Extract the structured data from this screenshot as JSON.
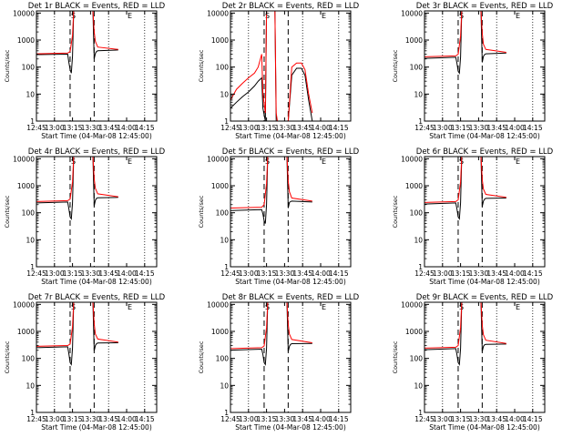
{
  "chart_data": {
    "type": "line",
    "xlabel": "Start Time (04-Mar-08 12:45:00)",
    "ylabel": "Counts/sec",
    "yscale": "log",
    "ylim": [
      1,
      12000
    ],
    "xlim": [
      "12:45",
      "14:25"
    ],
    "x_ticks": [
      "12:45",
      "13:00",
      "13:15",
      "13:30",
      "13:45",
      "14:00",
      "14:15"
    ],
    "y_ticks": [
      "1",
      "10",
      "100",
      "1000",
      "10000"
    ],
    "colors": {
      "events": "#000000",
      "lld": "#ff0000"
    },
    "vertical_markers": {
      "dotted": [
        "13:00",
        "13:45",
        "14:15"
      ],
      "dashed": [
        "13:13",
        "13:33"
      ],
      "labels": [
        {
          "text": "S",
          "x": "13:13"
        },
        {
          "text": "E",
          "x": "14:00"
        }
      ]
    },
    "panels": [
      {
        "title": "Det 1r BLACK = Events, RED = LLD",
        "series": [
          {
            "color": "black",
            "x": [
              "12:45",
              "13:11",
              "13:12",
              "13:13",
              "13:14",
              "13:15",
              "13:16",
              "13:32",
              "13:33",
              "13:34",
              "13:35",
              "13:36",
              "13:53"
            ],
            "values": [
              290,
              300,
              150,
              80,
              60,
              250,
              12000,
              12000,
              200,
              320,
              380,
              400,
              430
            ]
          },
          {
            "color": "red",
            "x": [
              "12:45",
              "13:11",
              "13:13",
              "13:15",
              "13:16",
              "13:32",
              "13:33",
              "13:34",
              "13:36",
              "13:53"
            ],
            "values": [
              310,
              330,
              380,
              1500,
              12000,
              12000,
              2000,
              900,
              550,
              450
            ]
          }
        ]
      },
      {
        "title": "Det 2r BLACK = Events, RED = LLD",
        "series": [
          {
            "color": "black",
            "x": [
              "12:45",
              "12:50",
              "12:55",
              "13:00",
              "13:05",
              "13:08",
              "13:11",
              "13:12",
              "13:14",
              "13:15",
              "13:22",
              "13:23",
              "13:24",
              "13:32",
              "13:33",
              "13:36",
              "13:40",
              "13:44",
              "13:47",
              "13:50",
              "13:53"
            ],
            "values": [
              3,
              5,
              8,
              12,
              20,
              30,
              40,
              3,
              1,
              12000,
              12000,
              1,
              1,
              1,
              1,
              50,
              90,
              90,
              50,
              6,
              1
            ]
          },
          {
            "color": "red",
            "x": [
              "12:45",
              "12:50",
              "12:55",
              "13:00",
              "13:05",
              "13:08",
              "13:11",
              "13:12",
              "13:14",
              "13:15",
              "13:22",
              "13:23",
              "13:24",
              "13:32",
              "13:33",
              "13:36",
              "13:40",
              "13:44",
              "13:47",
              "13:50",
              "13:53"
            ],
            "values": [
              6,
              15,
              25,
              40,
              60,
              100,
              300,
              10,
              2,
              12000,
              12000,
              2,
              1,
              1,
              1,
              100,
              140,
              140,
              80,
              10,
              2
            ]
          }
        ]
      },
      {
        "title": "Det 3r BLACK = Events, RED = LLD",
        "series": [
          {
            "color": "black",
            "x": [
              "12:45",
              "13:11",
              "13:12",
              "13:13",
              "13:14",
              "13:15",
              "13:16",
              "13:32",
              "13:33",
              "13:34",
              "13:35",
              "13:36",
              "13:53"
            ],
            "values": [
              210,
              230,
              140,
              70,
              60,
              230,
              12000,
              12000,
              150,
              250,
              290,
              310,
              330
            ]
          },
          {
            "color": "red",
            "x": [
              "12:45",
              "13:11",
              "13:13",
              "13:15",
              "13:16",
              "13:32",
              "13:33",
              "13:34",
              "13:36",
              "13:53"
            ],
            "values": [
              240,
              260,
              300,
              1400,
              12000,
              12000,
              1800,
              700,
              450,
              350
            ]
          }
        ]
      },
      {
        "title": "Det 4r BLACK = Events, RED = LLD",
        "series": [
          {
            "color": "black",
            "x": [
              "12:45",
              "13:11",
              "13:12",
              "13:13",
              "13:14",
              "13:15",
              "13:16",
              "13:32",
              "13:33",
              "13:34",
              "13:35",
              "13:36",
              "13:53"
            ],
            "values": [
              230,
              250,
              140,
              70,
              60,
              230,
              12000,
              12000,
              180,
              290,
              340,
              360,
              370
            ]
          },
          {
            "color": "red",
            "x": [
              "12:45",
              "13:11",
              "13:13",
              "13:15",
              "13:16",
              "13:32",
              "13:33",
              "13:34",
              "13:36",
              "13:53"
            ],
            "values": [
              260,
              280,
              320,
              1400,
              12000,
              12000,
              1800,
              800,
              500,
              390
            ]
          }
        ]
      },
      {
        "title": "Det 5r BLACK = Events, RED = LLD",
        "series": [
          {
            "color": "black",
            "x": [
              "12:45",
              "13:11",
              "13:12",
              "13:13",
              "13:14",
              "13:15",
              "13:16",
              "13:32",
              "13:33",
              "13:34",
              "13:35",
              "13:36",
              "13:53"
            ],
            "values": [
              120,
              130,
              90,
              50,
              40,
              200,
              12000,
              12000,
              150,
              240,
              260,
              270,
              250
            ]
          },
          {
            "color": "red",
            "x": [
              "12:45",
              "13:11",
              "13:13",
              "13:15",
              "13:16",
              "13:32",
              "13:33",
              "13:34",
              "13:36",
              "13:53"
            ],
            "values": [
              150,
              160,
              200,
              1200,
              12000,
              12000,
              1500,
              600,
              350,
              270
            ]
          }
        ]
      },
      {
        "title": "Det 6r BLACK = Events, RED = LLD",
        "series": [
          {
            "color": "black",
            "x": [
              "12:45",
              "13:11",
              "13:12",
              "13:13",
              "13:14",
              "13:15",
              "13:16",
              "13:32",
              "13:33",
              "13:34",
              "13:35",
              "13:36",
              "13:53"
            ],
            "values": [
              210,
              230,
              140,
              70,
              60,
              230,
              12000,
              12000,
              170,
              270,
              320,
              340,
              350
            ]
          },
          {
            "color": "red",
            "x": [
              "12:45",
              "13:11",
              "13:13",
              "13:15",
              "13:16",
              "13:32",
              "13:33",
              "13:34",
              "13:36",
              "13:53"
            ],
            "values": [
              240,
              260,
              300,
              1400,
              12000,
              12000,
              1700,
              750,
              480,
              370
            ]
          }
        ]
      },
      {
        "title": "Det 7r BLACK = Events, RED = LLD",
        "series": [
          {
            "color": "black",
            "x": [
              "12:45",
              "13:11",
              "13:12",
              "13:13",
              "13:14",
              "13:15",
              "13:16",
              "13:32",
              "13:33",
              "13:34",
              "13:35",
              "13:36",
              "13:53"
            ],
            "values": [
              250,
              270,
              150,
              70,
              60,
              240,
              12000,
              12000,
              190,
              300,
              350,
              370,
              380
            ]
          },
          {
            "color": "red",
            "x": [
              "12:45",
              "13:11",
              "13:13",
              "13:15",
              "13:16",
              "13:32",
              "13:33",
              "13:34",
              "13:36",
              "13:53"
            ],
            "values": [
              280,
              300,
              340,
              1500,
              12000,
              12000,
              1900,
              800,
              520,
              400
            ]
          }
        ]
      },
      {
        "title": "Det 8r BLACK = Events, RED = LLD",
        "series": [
          {
            "color": "black",
            "x": [
              "12:45",
              "13:11",
              "13:12",
              "13:13",
              "13:14",
              "13:15",
              "13:16",
              "13:32",
              "13:33",
              "13:34",
              "13:35",
              "13:36",
              "13:53"
            ],
            "values": [
              200,
              220,
              140,
              70,
              60,
              230,
              12000,
              12000,
              180,
              280,
              330,
              350,
              360
            ]
          },
          {
            "color": "red",
            "x": [
              "12:45",
              "13:11",
              "13:13",
              "13:15",
              "13:16",
              "13:32",
              "13:33",
              "13:34",
              "13:36",
              "13:53"
            ],
            "values": [
              230,
              250,
              290,
              1400,
              12000,
              12000,
              1800,
              800,
              500,
              380
            ]
          }
        ]
      },
      {
        "title": "Det 9r BLACK = Events, RED = LLD",
        "series": [
          {
            "color": "black",
            "x": [
              "12:45",
              "13:11",
              "13:12",
              "13:13",
              "13:14",
              "13:15",
              "13:16",
              "13:32",
              "13:33",
              "13:34",
              "13:35",
              "13:36",
              "13:53"
            ],
            "values": [
              210,
              230,
              140,
              70,
              60,
              230,
              12000,
              12000,
              180,
              280,
              320,
              330,
              340
            ]
          },
          {
            "color": "red",
            "x": [
              "12:45",
              "13:11",
              "13:13",
              "13:15",
              "13:16",
              "13:32",
              "13:33",
              "13:34",
              "13:36",
              "13:53"
            ],
            "values": [
              240,
              260,
              300,
              1400,
              12000,
              12000,
              1700,
              750,
              470,
              360
            ]
          }
        ]
      }
    ]
  }
}
